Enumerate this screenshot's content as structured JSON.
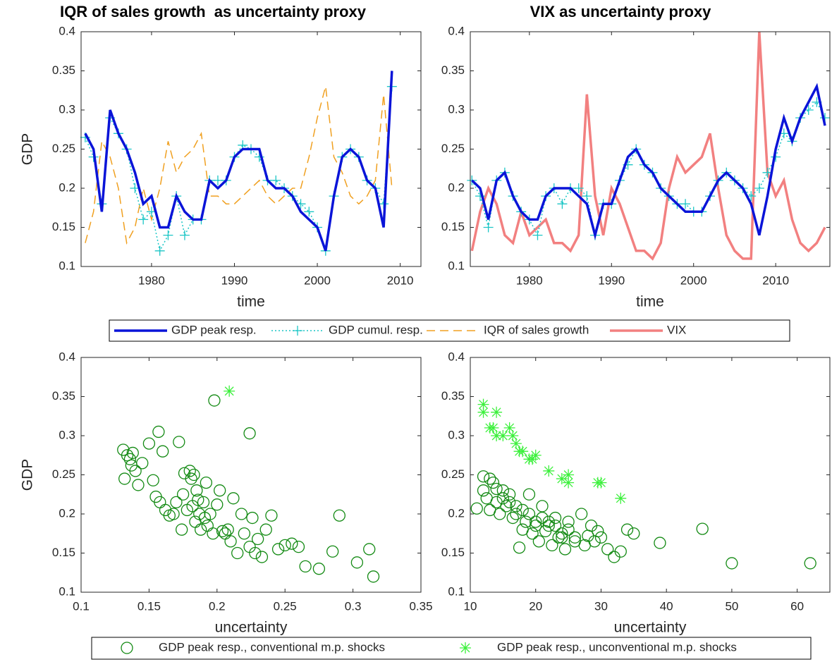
{
  "chart_data": [
    {
      "type": "line",
      "title": "IQR of sales growth  as uncertainty proxy",
      "x_label": "time",
      "y_label": "GDP",
      "xlim": [
        1971.5,
        2012.5
      ],
      "ylim": [
        0.1,
        0.4
      ],
      "xticks": [
        1980,
        1990,
        2000,
        2010
      ],
      "yticks": [
        0.1,
        0.15,
        0.2,
        0.25,
        0.3,
        0.35,
        0.4
      ],
      "x": [
        1972,
        1973,
        1974,
        1975,
        1976,
        1977,
        1978,
        1979,
        1980,
        1981,
        1982,
        1983,
        1984,
        1985,
        1986,
        1987,
        1988,
        1989,
        1990,
        1991,
        1992,
        1993,
        1994,
        1995,
        1996,
        1997,
        1998,
        1999,
        2000,
        2001,
        2002,
        2003,
        2004,
        2005,
        2006,
        2007,
        2008,
        2009
      ],
      "series": [
        {
          "name": "GDP peak resp.",
          "color": "#0a14d8",
          "line_style": "solid",
          "marker": "none",
          "values": [
            0.27,
            0.25,
            0.17,
            0.3,
            0.27,
            0.25,
            0.22,
            0.18,
            0.19,
            0.15,
            0.15,
            0.19,
            0.17,
            0.16,
            0.16,
            0.21,
            0.2,
            0.21,
            0.24,
            0.25,
            0.25,
            0.25,
            0.21,
            0.2,
            0.2,
            0.19,
            0.17,
            0.16,
            0.15,
            0.12,
            0.19,
            0.24,
            0.25,
            0.24,
            0.21,
            0.2,
            0.15,
            0.35
          ]
        },
        {
          "name": "GDP cumul. resp.",
          "color": "#1cc6c6",
          "line_style": "dotted",
          "marker": "+",
          "values": [
            0.265,
            0.24,
            0.18,
            0.29,
            0.27,
            0.25,
            0.2,
            0.16,
            0.17,
            0.12,
            0.14,
            0.19,
            0.14,
            0.16,
            0.16,
            0.21,
            0.21,
            0.21,
            0.24,
            0.255,
            0.25,
            0.24,
            0.21,
            0.21,
            0.2,
            0.19,
            0.18,
            0.17,
            0.15,
            0.12,
            0.19,
            0.24,
            0.25,
            0.24,
            0.21,
            0.2,
            0.18,
            0.33
          ]
        },
        {
          "name": "IQR of sales growth",
          "color": "#f0a020",
          "line_style": "dashed",
          "marker": "none",
          "values": [
            0.13,
            0.17,
            0.26,
            0.24,
            0.2,
            0.13,
            0.15,
            0.2,
            0.16,
            0.2,
            0.26,
            0.22,
            0.24,
            0.25,
            0.27,
            0.19,
            0.19,
            0.18,
            0.18,
            0.19,
            0.2,
            0.21,
            0.19,
            0.18,
            0.19,
            0.2,
            0.2,
            0.24,
            0.29,
            0.33,
            0.24,
            0.22,
            0.19,
            0.18,
            0.19,
            0.21,
            0.32,
            0.2
          ]
        }
      ]
    },
    {
      "type": "line",
      "title": "VIX as uncertainty proxy",
      "x_label": "time",
      "xlim": [
        1972.8,
        2016.6
      ],
      "ylim": [
        0.1,
        0.4
      ],
      "xticks": [
        1980,
        1990,
        2000,
        2010
      ],
      "yticks": [
        0.1,
        0.15,
        0.2,
        0.25,
        0.3,
        0.35,
        0.4
      ],
      "x": [
        1973,
        1974,
        1975,
        1976,
        1977,
        1978,
        1979,
        1980,
        1981,
        1982,
        1983,
        1984,
        1985,
        1986,
        1987,
        1988,
        1989,
        1990,
        1991,
        1992,
        1993,
        1994,
        1995,
        1996,
        1997,
        1998,
        1999,
        2000,
        2001,
        2002,
        2003,
        2004,
        2005,
        2006,
        2007,
        2008,
        2009,
        2010,
        2011,
        2012,
        2013,
        2014,
        2015,
        2016
      ],
      "series": [
        {
          "name": "GDP peak resp.",
          "color": "#0a14d8",
          "line_style": "solid",
          "marker": "none",
          "values": [
            0.21,
            0.2,
            0.16,
            0.21,
            0.22,
            0.19,
            0.17,
            0.16,
            0.16,
            0.19,
            0.2,
            0.2,
            0.2,
            0.19,
            0.18,
            0.14,
            0.18,
            0.18,
            0.21,
            0.24,
            0.25,
            0.23,
            0.22,
            0.2,
            0.19,
            0.18,
            0.17,
            0.17,
            0.17,
            0.19,
            0.21,
            0.22,
            0.21,
            0.2,
            0.18,
            0.14,
            0.19,
            0.25,
            0.29,
            0.26,
            0.29,
            0.31,
            0.33,
            0.28
          ]
        },
        {
          "name": "GDP cumul. resp.",
          "color": "#1cc6c6",
          "line_style": "dotted",
          "marker": "+",
          "values": [
            0.21,
            0.19,
            0.15,
            0.21,
            0.22,
            0.19,
            0.17,
            0.16,
            0.14,
            0.19,
            0.2,
            0.18,
            0.2,
            0.2,
            0.19,
            0.14,
            0.18,
            0.18,
            0.21,
            0.23,
            0.25,
            0.23,
            0.22,
            0.2,
            0.19,
            0.18,
            0.18,
            0.17,
            0.17,
            0.19,
            0.21,
            0.22,
            0.21,
            0.2,
            0.19,
            0.2,
            0.22,
            0.24,
            0.27,
            0.26,
            0.29,
            0.3,
            0.31,
            0.29
          ]
        },
        {
          "name": "VIX",
          "color": "#f28080",
          "line_style": "solid",
          "marker": "none",
          "values": [
            0.12,
            0.17,
            0.2,
            0.18,
            0.14,
            0.13,
            0.17,
            0.14,
            0.15,
            0.16,
            0.13,
            0.13,
            0.12,
            0.14,
            0.32,
            0.19,
            0.14,
            0.2,
            0.18,
            0.15,
            0.12,
            0.12,
            0.11,
            0.13,
            0.2,
            0.24,
            0.22,
            0.23,
            0.24,
            0.27,
            0.2,
            0.14,
            0.12,
            0.11,
            0.11,
            0.4,
            0.22,
            0.19,
            0.21,
            0.16,
            0.13,
            0.12,
            0.13,
            0.15
          ]
        }
      ]
    },
    {
      "type": "scatter",
      "x_label": "uncertainty",
      "y_label": "GDP",
      "xlim": [
        0.1,
        0.35
      ],
      "ylim": [
        0.1,
        0.4
      ],
      "xticks": [
        0.1,
        0.15,
        0.2,
        0.25,
        0.3,
        0.35
      ],
      "yticks": [
        0.1,
        0.15,
        0.2,
        0.25,
        0.3,
        0.35,
        0.4
      ],
      "series": [
        {
          "name": "GDP peak resp., conventional m.p. shocks",
          "color": "#138a13",
          "marker": "o",
          "x": [
            0.131,
            0.132,
            0.134,
            0.136,
            0.137,
            0.138,
            0.14,
            0.142,
            0.145,
            0.15,
            0.153,
            0.155,
            0.157,
            0.158,
            0.16,
            0.162,
            0.165,
            0.168,
            0.17,
            0.172,
            0.174,
            0.175,
            0.176,
            0.178,
            0.18,
            0.181,
            0.182,
            0.183,
            0.184,
            0.185,
            0.186,
            0.187,
            0.188,
            0.19,
            0.191,
            0.192,
            0.193,
            0.195,
            0.197,
            0.198,
            0.2,
            0.202,
            0.204,
            0.206,
            0.208,
            0.21,
            0.212,
            0.215,
            0.218,
            0.22,
            0.224,
            0.224,
            0.226,
            0.228,
            0.23,
            0.233,
            0.236,
            0.24,
            0.245,
            0.25,
            0.255,
            0.26,
            0.265,
            0.275,
            0.285,
            0.29,
            0.303,
            0.312,
            0.315
          ],
          "values": [
            0.282,
            0.245,
            0.275,
            0.27,
            0.262,
            0.278,
            0.255,
            0.237,
            0.265,
            0.29,
            0.243,
            0.222,
            0.305,
            0.215,
            0.28,
            0.205,
            0.198,
            0.2,
            0.215,
            0.292,
            0.18,
            0.225,
            0.252,
            0.205,
            0.255,
            0.245,
            0.21,
            0.25,
            0.19,
            0.23,
            0.218,
            0.2,
            0.18,
            0.215,
            0.195,
            0.24,
            0.185,
            0.2,
            0.175,
            0.345,
            0.212,
            0.23,
            0.178,
            0.175,
            0.18,
            0.165,
            0.22,
            0.15,
            0.2,
            0.175,
            0.303,
            0.158,
            0.195,
            0.15,
            0.168,
            0.145,
            0.18,
            0.198,
            0.155,
            0.16,
            0.162,
            0.158,
            0.133,
            0.13,
            0.152,
            0.198,
            0.138,
            0.155,
            0.12
          ]
        },
        {
          "name": "GDP peak resp., unconventional m.p. shocks",
          "color": "#3cf03c",
          "marker": "*",
          "x": [
            0.209
          ],
          "values": [
            0.357
          ]
        }
      ]
    },
    {
      "type": "scatter",
      "x_label": "uncertainty",
      "xlim": [
        10,
        65
      ],
      "ylim": [
        0.1,
        0.4
      ],
      "xticks": [
        10,
        20,
        30,
        40,
        50,
        60
      ],
      "yticks": [
        0.1,
        0.15,
        0.2,
        0.25,
        0.3,
        0.35,
        0.4
      ],
      "series": [
        {
          "name": "GDP peak resp., conventional m.p. shocks",
          "color": "#138a13",
          "marker": "o",
          "x": [
            11,
            12,
            12.5,
            13,
            13.5,
            14,
            14.5,
            15,
            15.5,
            16,
            16.5,
            17,
            17.5,
            18,
            18.5,
            19,
            19.5,
            20,
            20.5,
            21,
            21.5,
            22,
            22.5,
            23,
            23.5,
            24,
            24.5,
            25,
            26,
            27,
            27.5,
            28,
            28.5,
            29,
            29.5,
            30,
            31,
            32,
            33,
            34,
            35,
            39,
            45.5,
            50,
            62,
            12,
            13,
            14,
            15,
            16,
            17,
            18,
            19,
            20,
            21,
            22,
            23,
            24,
            25,
            26
          ],
          "values": [
            0.207,
            0.248,
            0.22,
            0.205,
            0.24,
            0.215,
            0.2,
            0.23,
            0.21,
            0.225,
            0.195,
            0.21,
            0.157,
            0.18,
            0.19,
            0.2,
            0.175,
            0.185,
            0.165,
            0.195,
            0.178,
            0.19,
            0.16,
            0.185,
            0.17,
            0.175,
            0.155,
            0.18,
            0.165,
            0.2,
            0.16,
            0.172,
            0.185,
            0.165,
            0.178,
            0.17,
            0.155,
            0.145,
            0.152,
            0.18,
            0.175,
            0.163,
            0.181,
            0.137,
            0.137,
            0.23,
            0.245,
            0.232,
            0.22,
            0.215,
            0.2,
            0.205,
            0.225,
            0.19,
            0.21,
            0.185,
            0.195,
            0.17,
            0.19,
            0.17
          ]
        },
        {
          "name": "GDP peak resp., unconventional m.p. shocks",
          "color": "#3cf03c",
          "marker": "*",
          "x": [
            12,
            12,
            13,
            13.5,
            14,
            14,
            15,
            16,
            16.5,
            17,
            17.5,
            18,
            19,
            19.5,
            20,
            22,
            24,
            25,
            25,
            29.5,
            30,
            33
          ],
          "values": [
            0.34,
            0.33,
            0.31,
            0.31,
            0.33,
            0.3,
            0.3,
            0.31,
            0.3,
            0.29,
            0.28,
            0.28,
            0.27,
            0.27,
            0.275,
            0.255,
            0.245,
            0.25,
            0.24,
            0.24,
            0.24,
            0.22
          ]
        }
      ]
    }
  ]
}
